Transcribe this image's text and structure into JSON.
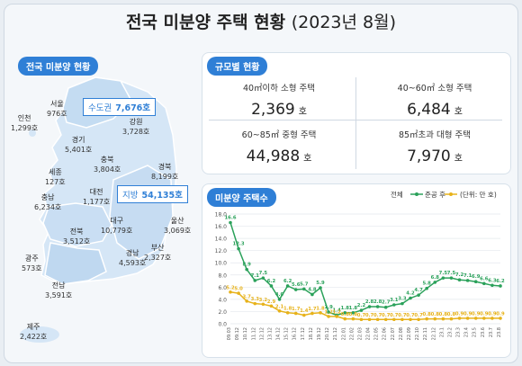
{
  "title": "전국 미분양 주택 현황",
  "title_paren": "(2023년 8월)",
  "map_section": {
    "label": "전국 미분양 현황",
    "regions": [
      {
        "name": "서울",
        "value": "976호"
      },
      {
        "name": "인천",
        "value": "1,299호"
      },
      {
        "name": "경기",
        "value": "5,401호"
      },
      {
        "name": "강원",
        "value": "3,728호"
      },
      {
        "name": "충북",
        "value": "3,804호"
      },
      {
        "name": "세종",
        "value": "127호"
      },
      {
        "name": "경북",
        "value": "8,199호"
      },
      {
        "name": "충남",
        "value": "6,234호"
      },
      {
        "name": "대전",
        "value": "1,177호"
      },
      {
        "name": "대구",
        "value": "10,779호"
      },
      {
        "name": "전북",
        "value": "3,512호"
      },
      {
        "name": "울산",
        "value": "3,069호"
      },
      {
        "name": "광주",
        "value": "573호"
      },
      {
        "name": "경남",
        "value": "4,593호"
      },
      {
        "name": "부산",
        "value": "2,327호"
      },
      {
        "name": "전남",
        "value": "3,591호"
      },
      {
        "name": "제주",
        "value": "2,422호"
      }
    ],
    "capital_label": "수도권",
    "capital_value": "7,676호",
    "local_label": "지방",
    "local_value": "54,135호"
  },
  "size_section": {
    "label": "규모별 현황",
    "items": [
      {
        "label": "40㎡이하 소형 주택",
        "value": "2,369",
        "unit": "호"
      },
      {
        "label": "40~60㎡ 소형 주택",
        "value": "6,484",
        "unit": "호"
      },
      {
        "label": "60~85㎡ 중형 주택",
        "value": "44,988",
        "unit": "호"
      },
      {
        "label": "85㎡초과 대형 주택",
        "value": "7,970",
        "unit": "호"
      }
    ]
  },
  "colors": {
    "accent": "#2f7fd6",
    "total": "#2aa15a",
    "completed": "#e7b21a"
  },
  "chart_data": {
    "type": "line",
    "title": "미분양 주택수",
    "legend_title": "전체",
    "legend_position": "top-right",
    "unit_label": "(단위: 만 호)",
    "ylim": [
      0,
      18
    ],
    "yticks": [
      "0.0",
      "2.0",
      "4.0",
      "6.0",
      "8.0",
      "10.0",
      "12.0",
      "14.0",
      "16.0",
      "18.0"
    ],
    "x": [
      "09.03",
      "09.12",
      "10.12",
      "11.12",
      "12.12",
      "13.12",
      "14.12",
      "15.12",
      "16.12",
      "17.12",
      "18.12",
      "19.12",
      "20.12",
      "21.12",
      "22.01",
      "22.02",
      "22.03",
      "22.04",
      "22.05",
      "22.06",
      "22.07",
      "22.08",
      "22.09",
      "22.10",
      "22.11",
      "22.12",
      "23.1",
      "23.2",
      "23.3",
      "23.4",
      "23.5",
      "23.6",
      "23.7",
      "23.8"
    ],
    "series": [
      {
        "name": "전체",
        "values": [
          16.6,
          12.3,
          8.9,
          7.1,
          7.5,
          6.2,
          4.0,
          6.2,
          5.6,
          5.7,
          4.8,
          5.9,
          1.9,
          1.4,
          1.8,
          1.8,
          2.2,
          2.8,
          2.8,
          2.7,
          3.1,
          3.3,
          4.2,
          4.7,
          5.8,
          6.8,
          7.5,
          7.5,
          7.2,
          7.1,
          6.9,
          6.6,
          6.3,
          6.2
        ]
      },
      {
        "name": "준공 후",
        "values": [
          5.2,
          5.0,
          3.7,
          3.3,
          3.2,
          2.9,
          2.1,
          1.8,
          1.7,
          1.4,
          1.7,
          1.8,
          1.2,
          1.2,
          0.8,
          0.8,
          0.7,
          0.7,
          0.7,
          0.7,
          0.7,
          0.7,
          0.7,
          0.7,
          0.8,
          0.8,
          0.8,
          0.8,
          0.9,
          0.9,
          0.9,
          0.9,
          0.9,
          0.9
        ]
      }
    ],
    "point_labels": {
      "전체": [
        "16.6",
        "12.3",
        "8.9",
        "7.1",
        "7.5",
        "6.2",
        "4.0",
        "6.2",
        "5.6",
        "5.7",
        "4.8",
        "5.9",
        "1.9",
        "1.4",
        "1.8",
        "1.8",
        "2.2",
        "2.8",
        "2.8",
        "2.7",
        "3.1",
        "3.3",
        "4.2",
        "4.7",
        "5.8",
        "6.8",
        "7.5",
        "7.5",
        "7.2",
        "7.1",
        "6.9",
        "6.6",
        "6.3",
        "6.2"
      ],
      "준공 후": [
        "5.2",
        "5.0",
        "3.7",
        "3.3",
        "3.2",
        "2.9",
        "2.1",
        "1.8",
        "1.7",
        "1.4",
        "1.7",
        "1.8",
        "1.2",
        "1.2",
        "0.8",
        "0.8",
        "0.7",
        "0.7",
        "0.7",
        "0.7",
        "0.7",
        "0.7",
        "0.7",
        "0.7",
        "0.8",
        "0.8",
        "0.8",
        "0.8",
        "0.9",
        "0.9",
        "0.9",
        "0.9",
        "0.9",
        "0.9"
      ]
    }
  }
}
